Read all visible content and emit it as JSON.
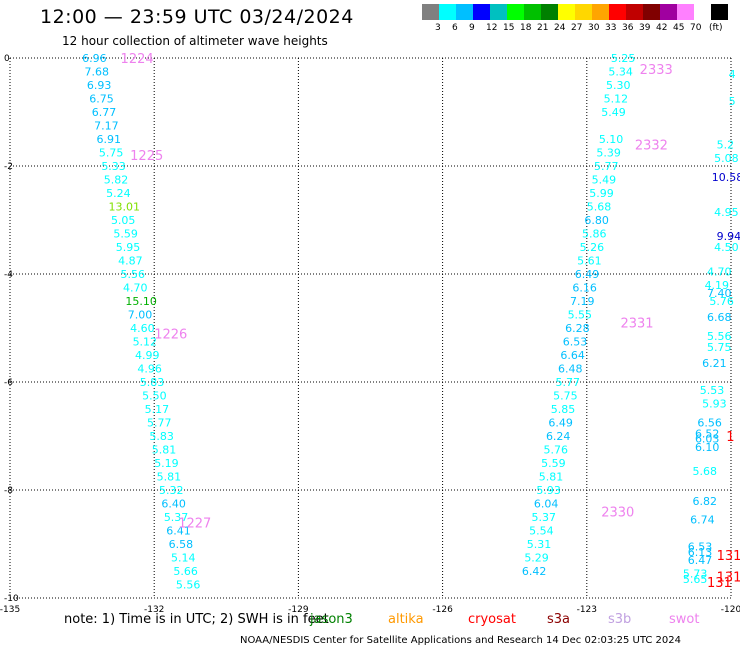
{
  "title": "12:00 — 23:59 UTC 03/24/2024",
  "subtitle": "12 hour collection of altimeter wave heights",
  "colorbar": {
    "colors": [
      "#808080",
      "#00ffff",
      "#00bfff",
      "#0000ff",
      "#00c0c0",
      "#00ff00",
      "#00c000",
      "#008000",
      "#ffff00",
      "#ffd700",
      "#ffa500",
      "#ff0000",
      "#c00000",
      "#800000",
      "#a000a0",
      "#ff80ff",
      "#ffffff",
      "#000000"
    ],
    "labels": [
      "3",
      "6",
      "9",
      "12",
      "15",
      "18",
      "21",
      "24",
      "27",
      "30",
      "33",
      "36",
      "39",
      "42",
      "45",
      "70"
    ],
    "unit": "(ft)"
  },
  "note": "note:  1) Time is in UTC;  2) SWH is in feet",
  "missions": [
    {
      "name": "jason3",
      "color": "#008000"
    },
    {
      "name": "altika",
      "color": "#ff9900"
    },
    {
      "name": "cryosat",
      "color": "#ff0000"
    },
    {
      "name": "s3a",
      "color": "#8b0000"
    },
    {
      "name": "s3b",
      "color": "#c0a0e0"
    },
    {
      "name": "swot",
      "color": "#ee82ee"
    }
  ],
  "footer": "NOAA/NESDIS Center for Satellite Applications and Research    14 Dec 02:03:25 UTC 2024",
  "chart_data": {
    "type": "scatter",
    "xlim": [
      -135,
      -120
    ],
    "ylim": [
      -10,
      0
    ],
    "x_ticks": [
      "-135",
      "-132",
      "-129",
      "-126",
      "-123",
      "-120"
    ],
    "y_ticks": [
      "0",
      "-2",
      "-4",
      "-6",
      "-8",
      "-10"
    ],
    "grid": true,
    "time_labels": [
      {
        "text": "1224",
        "lon": -132.7,
        "lat": 0.0,
        "color": "#ee82ee"
      },
      {
        "text": "1225",
        "lon": -132.5,
        "lat": -1.8,
        "color": "#ee82ee"
      },
      {
        "text": "1226",
        "lon": -132.0,
        "lat": -5.1,
        "color": "#ee82ee"
      },
      {
        "text": "1227",
        "lon": -131.5,
        "lat": -8.6,
        "color": "#ee82ee"
      },
      {
        "text": "2333",
        "lon": -121.9,
        "lat": -0.2,
        "color": "#ee82ee"
      },
      {
        "text": "2332",
        "lon": -122.0,
        "lat": -1.6,
        "color": "#ee82ee"
      },
      {
        "text": "2331",
        "lon": -122.3,
        "lat": -4.9,
        "color": "#ee82ee"
      },
      {
        "text": "2330",
        "lon": -122.7,
        "lat": -8.4,
        "color": "#ee82ee"
      },
      {
        "text": "131",
        "lon": -120.3,
        "lat": -9.2,
        "color": "#ff0000"
      },
      {
        "text": "131",
        "lon": -120.3,
        "lat": -9.6,
        "color": "#ff0000"
      },
      {
        "text": "131",
        "lon": -120.5,
        "lat": -9.7,
        "color": "#ff0000"
      },
      {
        "text": "1",
        "lon": -120.1,
        "lat": -7.0,
        "color": "#ff0000"
      }
    ],
    "wave_points": [
      {
        "v": "6.96",
        "lon": -133.5,
        "lat": 0.0,
        "color": "#00bfff"
      },
      {
        "v": "7.68",
        "lon": -133.45,
        "lat": -0.25,
        "color": "#00bfff"
      },
      {
        "v": "6.93",
        "lon": -133.4,
        "lat": -0.5,
        "color": "#00bfff"
      },
      {
        "v": "6.75",
        "lon": -133.35,
        "lat": -0.75,
        "color": "#00bfff"
      },
      {
        "v": "6.77",
        "lon": -133.3,
        "lat": -1.0,
        "color": "#00bfff"
      },
      {
        "v": "7.17",
        "lon": -133.25,
        "lat": -1.25,
        "color": "#00bfff"
      },
      {
        "v": "6.91",
        "lon": -133.2,
        "lat": -1.5,
        "color": "#00bfff"
      },
      {
        "v": "5.75",
        "lon": -133.15,
        "lat": -1.75,
        "color": "#00ffff"
      },
      {
        "v": "5.33",
        "lon": -133.1,
        "lat": -2.0,
        "color": "#00ffff"
      },
      {
        "v": "5.82",
        "lon": -133.05,
        "lat": -2.25,
        "color": "#00ffff"
      },
      {
        "v": "5.24",
        "lon": -133.0,
        "lat": -2.5,
        "color": "#00ffff"
      },
      {
        "v": "13.01",
        "lon": -132.95,
        "lat": -2.75,
        "color": "#80e000"
      },
      {
        "v": "5.05",
        "lon": -132.9,
        "lat": -3.0,
        "color": "#00ffff"
      },
      {
        "v": "5.59",
        "lon": -132.85,
        "lat": -3.25,
        "color": "#00ffff"
      },
      {
        "v": "5.95",
        "lon": -132.8,
        "lat": -3.5,
        "color": "#00ffff"
      },
      {
        "v": "4.87",
        "lon": -132.75,
        "lat": -3.75,
        "color": "#00ffff"
      },
      {
        "v": "5.56",
        "lon": -132.7,
        "lat": -4.0,
        "color": "#00ffff"
      },
      {
        "v": "4.70",
        "lon": -132.65,
        "lat": -4.25,
        "color": "#00ffff"
      },
      {
        "v": "15.10",
        "lon": -132.6,
        "lat": -4.5,
        "color": "#00b000"
      },
      {
        "v": "7.00",
        "lon": -132.55,
        "lat": -4.75,
        "color": "#00bfff"
      },
      {
        "v": "4.60",
        "lon": -132.5,
        "lat": -5.0,
        "color": "#00ffff"
      },
      {
        "v": "5.12",
        "lon": -132.45,
        "lat": -5.25,
        "color": "#00ffff"
      },
      {
        "v": "4.99",
        "lon": -132.4,
        "lat": -5.5,
        "color": "#00ffff"
      },
      {
        "v": "4.96",
        "lon": -132.35,
        "lat": -5.75,
        "color": "#00ffff"
      },
      {
        "v": "5.83",
        "lon": -132.3,
        "lat": -6.0,
        "color": "#00ffff"
      },
      {
        "v": "5.50",
        "lon": -132.25,
        "lat": -6.25,
        "color": "#00ffff"
      },
      {
        "v": "5.17",
        "lon": -132.2,
        "lat": -6.5,
        "color": "#00ffff"
      },
      {
        "v": "5.77",
        "lon": -132.15,
        "lat": -6.75,
        "color": "#00ffff"
      },
      {
        "v": "5.83",
        "lon": -132.1,
        "lat": -7.0,
        "color": "#00ffff"
      },
      {
        "v": "5.81",
        "lon": -132.05,
        "lat": -7.25,
        "color": "#00ffff"
      },
      {
        "v": "5.19",
        "lon": -132.0,
        "lat": -7.5,
        "color": "#00ffff"
      },
      {
        "v": "5.81",
        "lon": -131.95,
        "lat": -7.75,
        "color": "#00ffff"
      },
      {
        "v": "5.32",
        "lon": -131.9,
        "lat": -8.0,
        "color": "#00ffff"
      },
      {
        "v": "6.40",
        "lon": -131.85,
        "lat": -8.25,
        "color": "#00bfff"
      },
      {
        "v": "5.37",
        "lon": -131.8,
        "lat": -8.5,
        "color": "#00ffff"
      },
      {
        "v": "6.41",
        "lon": -131.75,
        "lat": -8.75,
        "color": "#00bfff"
      },
      {
        "v": "6.58",
        "lon": -131.7,
        "lat": -9.0,
        "color": "#00bfff"
      },
      {
        "v": "5.14",
        "lon": -131.65,
        "lat": -9.25,
        "color": "#00ffff"
      },
      {
        "v": "5.66",
        "lon": -131.6,
        "lat": -9.5,
        "color": "#00ffff"
      },
      {
        "v": "5.56",
        "lon": -131.55,
        "lat": -9.75,
        "color": "#00ffff"
      },
      {
        "v": "5.25",
        "lon": -122.5,
        "lat": 0.0,
        "color": "#00ffff"
      },
      {
        "v": "5.34",
        "lon": -122.55,
        "lat": -0.25,
        "color": "#00ffff"
      },
      {
        "v": "5.30",
        "lon": -122.6,
        "lat": -0.5,
        "color": "#00ffff"
      },
      {
        "v": "5.12",
        "lon": -122.65,
        "lat": -0.75,
        "color": "#00ffff"
      },
      {
        "v": "5.49",
        "lon": -122.7,
        "lat": -1.0,
        "color": "#00ffff"
      },
      {
        "v": "5.10",
        "lon": -122.75,
        "lat": -1.5,
        "color": "#00ffff"
      },
      {
        "v": "5.39",
        "lon": -122.8,
        "lat": -1.75,
        "color": "#00ffff"
      },
      {
        "v": "5.77",
        "lon": -122.85,
        "lat": -2.0,
        "color": "#00ffff"
      },
      {
        "v": "5.49",
        "lon": -122.9,
        "lat": -2.25,
        "color": "#00ffff"
      },
      {
        "v": "5.99",
        "lon": -122.95,
        "lat": -2.5,
        "color": "#00ffff"
      },
      {
        "v": "5.68",
        "lon": -123.0,
        "lat": -2.75,
        "color": "#00ffff"
      },
      {
        "v": "6.80",
        "lon": -123.05,
        "lat": -3.0,
        "color": "#00bfff"
      },
      {
        "v": "5.86",
        "lon": -123.1,
        "lat": -3.25,
        "color": "#00ffff"
      },
      {
        "v": "5.26",
        "lon": -123.15,
        "lat": -3.5,
        "color": "#00ffff"
      },
      {
        "v": "5.61",
        "lon": -123.2,
        "lat": -3.75,
        "color": "#00ffff"
      },
      {
        "v": "6.49",
        "lon": -123.25,
        "lat": -4.0,
        "color": "#00bfff"
      },
      {
        "v": "6.16",
        "lon": -123.3,
        "lat": -4.25,
        "color": "#00bfff"
      },
      {
        "v": "7.19",
        "lon": -123.35,
        "lat": -4.5,
        "color": "#00bfff"
      },
      {
        "v": "5.55",
        "lon": -123.4,
        "lat": -4.75,
        "color": "#00ffff"
      },
      {
        "v": "6.28",
        "lon": -123.45,
        "lat": -5.0,
        "color": "#00bfff"
      },
      {
        "v": "6.53",
        "lon": -123.5,
        "lat": -5.25,
        "color": "#00bfff"
      },
      {
        "v": "6.64",
        "lon": -123.55,
        "lat": -5.5,
        "color": "#00bfff"
      },
      {
        "v": "6.48",
        "lon": -123.6,
        "lat": -5.75,
        "color": "#00bfff"
      },
      {
        "v": "5.77",
        "lon": -123.65,
        "lat": -6.0,
        "color": "#00ffff"
      },
      {
        "v": "5.75",
        "lon": -123.7,
        "lat": -6.25,
        "color": "#00ffff"
      },
      {
        "v": "5.85",
        "lon": -123.75,
        "lat": -6.5,
        "color": "#00ffff"
      },
      {
        "v": "6.49",
        "lon": -123.8,
        "lat": -6.75,
        "color": "#00bfff"
      },
      {
        "v": "6.24",
        "lon": -123.85,
        "lat": -7.0,
        "color": "#00bfff"
      },
      {
        "v": "5.76",
        "lon": -123.9,
        "lat": -7.25,
        "color": "#00ffff"
      },
      {
        "v": "5.59",
        "lon": -123.95,
        "lat": -7.5,
        "color": "#00ffff"
      },
      {
        "v": "5.81",
        "lon": -124.0,
        "lat": -7.75,
        "color": "#00ffff"
      },
      {
        "v": "5.93",
        "lon": -124.05,
        "lat": -8.0,
        "color": "#00ffff"
      },
      {
        "v": "6.04",
        "lon": -124.1,
        "lat": -8.25,
        "color": "#00bfff"
      },
      {
        "v": "5.37",
        "lon": -124.15,
        "lat": -8.5,
        "color": "#00ffff"
      },
      {
        "v": "5.54",
        "lon": -124.2,
        "lat": -8.75,
        "color": "#00ffff"
      },
      {
        "v": "5.31",
        "lon": -124.25,
        "lat": -9.0,
        "color": "#00ffff"
      },
      {
        "v": "5.29",
        "lon": -124.3,
        "lat": -9.25,
        "color": "#00ffff"
      },
      {
        "v": "6.42",
        "lon": -124.35,
        "lat": -9.5,
        "color": "#00bfff"
      },
      {
        "v": "5.2",
        "lon": -120.3,
        "lat": -1.6,
        "color": "#00ffff"
      },
      {
        "v": "5.08",
        "lon": -120.35,
        "lat": -1.85,
        "color": "#00ffff"
      },
      {
        "v": "10.58",
        "lon": -120.4,
        "lat": -2.2,
        "color": "#0000cd"
      },
      {
        "v": "4.95",
        "lon": -120.35,
        "lat": -2.85,
        "color": "#00ffff"
      },
      {
        "v": "9.94",
        "lon": -120.3,
        "lat": -3.3,
        "color": "#0000cd"
      },
      {
        "v": "4.50",
        "lon": -120.35,
        "lat": -3.5,
        "color": "#00ffff"
      },
      {
        "v": "4.70",
        "lon": -120.5,
        "lat": -3.95,
        "color": "#00ffff"
      },
      {
        "v": "4.19",
        "lon": -120.55,
        "lat": -4.2,
        "color": "#00ffff"
      },
      {
        "v": "7.40",
        "lon": -120.5,
        "lat": -4.35,
        "color": "#00bfff"
      },
      {
        "v": "5.76",
        "lon": -120.45,
        "lat": -4.5,
        "color": "#00ffff"
      },
      {
        "v": "6.68",
        "lon": -120.5,
        "lat": -4.8,
        "color": "#00bfff"
      },
      {
        "v": "5.56",
        "lon": -120.5,
        "lat": -5.15,
        "color": "#00ffff"
      },
      {
        "v": "5.75",
        "lon": -120.5,
        "lat": -5.35,
        "color": "#00ffff"
      },
      {
        "v": "6.21",
        "lon": -120.6,
        "lat": -5.65,
        "color": "#00bfff"
      },
      {
        "v": "5.53",
        "lon": -120.65,
        "lat": -6.15,
        "color": "#00ffff"
      },
      {
        "v": "5.93",
        "lon": -120.6,
        "lat": -6.4,
        "color": "#00ffff"
      },
      {
        "v": "6.56",
        "lon": -120.7,
        "lat": -6.75,
        "color": "#00bfff"
      },
      {
        "v": "6.52",
        "lon": -120.75,
        "lat": -6.95,
        "color": "#00bfff"
      },
      {
        "v": "6.03",
        "lon": -120.75,
        "lat": -7.05,
        "color": "#00bfff"
      },
      {
        "v": "6.10",
        "lon": -120.75,
        "lat": -7.2,
        "color": "#00bfff"
      },
      {
        "v": "5.68",
        "lon": -120.8,
        "lat": -7.65,
        "color": "#00ffff"
      },
      {
        "v": "6.82",
        "lon": -120.8,
        "lat": -8.2,
        "color": "#00bfff"
      },
      {
        "v": "6.74",
        "lon": -120.85,
        "lat": -8.55,
        "color": "#00bfff"
      },
      {
        "v": "6.53",
        "lon": -120.9,
        "lat": -9.05,
        "color": "#00bfff"
      },
      {
        "v": "6.13",
        "lon": -120.9,
        "lat": -9.15,
        "color": "#00bfff"
      },
      {
        "v": "6.47",
        "lon": -120.9,
        "lat": -9.3,
        "color": "#00bfff"
      },
      {
        "v": "5.73",
        "lon": -121.0,
        "lat": -9.55,
        "color": "#00ffff"
      },
      {
        "v": "5.65",
        "lon": -121.0,
        "lat": -9.65,
        "color": "#00ffff"
      },
      {
        "v": "4",
        "lon": -120.05,
        "lat": -0.3,
        "color": "#00ffff"
      },
      {
        "v": "5",
        "lon": -120.05,
        "lat": -0.8,
        "color": "#00ffff"
      }
    ]
  }
}
